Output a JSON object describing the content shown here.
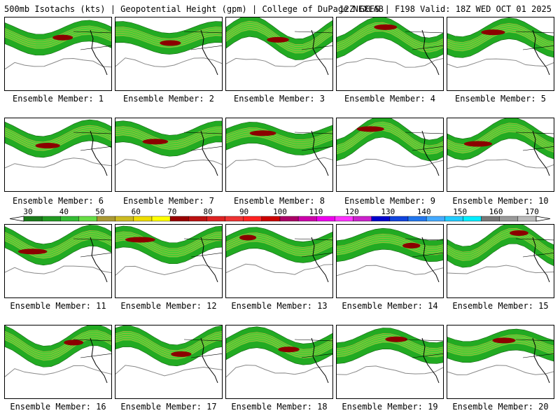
{
  "header": {
    "left": "500mb Isotachs (kts) | Geopotential Height (gpm) | College of DuPage NEXLAB",
    "right": "12Z GEFS | F198 Valid: 18Z WED OCT 01 2025"
  },
  "members": [
    "Ensemble Member: 1",
    "Ensemble Member: 2",
    "Ensemble Member: 3",
    "Ensemble Member: 4",
    "Ensemble Member: 5",
    "Ensemble Member: 6",
    "Ensemble Member: 7",
    "Ensemble Member: 8",
    "Ensemble Member: 9",
    "Ensemble Member: 10",
    "Ensemble Member: 11",
    "Ensemble Member: 12",
    "Ensemble Member: 13",
    "Ensemble Member: 14",
    "Ensemble Member: 15",
    "Ensemble Member: 16",
    "Ensemble Member: 17",
    "Ensemble Member: 18",
    "Ensemble Member: 19",
    "Ensemble Member: 20"
  ],
  "colorbar": {
    "ticks": [
      "30",
      "40",
      "50",
      "60",
      "70",
      "80",
      "90",
      "100",
      "110",
      "120",
      "130",
      "140",
      "150",
      "160",
      "170"
    ],
    "colors": [
      "#1a7a1a",
      "#229922",
      "#33bb33",
      "#66dd44",
      "#aa9933",
      "#ccbb22",
      "#eedd00",
      "#ffff00",
      "#990000",
      "#bb1111",
      "#dd2222",
      "#ee3333",
      "#ff2222",
      "#cc0000",
      "#aa0066",
      "#cc00aa",
      "#ee00ee",
      "#ff33ff",
      "#cc22cc",
      "#0000cc",
      "#1144dd",
      "#2277ee",
      "#44aaff",
      "#22ccff",
      "#00eeff",
      "#777777",
      "#999999",
      "#bbbbbb"
    ]
  }
}
